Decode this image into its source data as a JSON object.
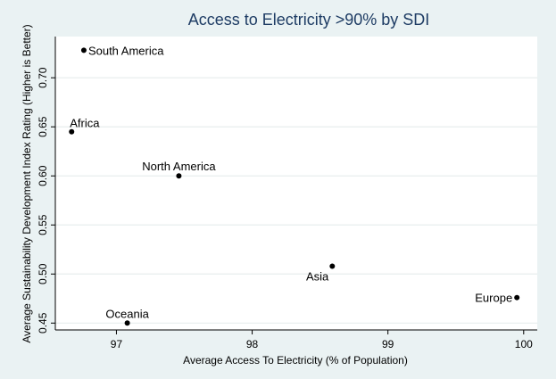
{
  "chart_data": {
    "type": "scatter",
    "title": "Access to Electricity >90% by SDI",
    "xlabel": "Average Access To Electricity (% of Population)",
    "ylabel": "Average Sustainability Development Index Rating (Higher is Better)",
    "xlim": [
      96.55,
      100.1
    ],
    "ylim": [
      0.443,
      0.742
    ],
    "x_ticks": [
      97,
      98,
      99,
      100
    ],
    "y_ticks": [
      0.45,
      0.5,
      0.55,
      0.6,
      0.65,
      0.7
    ],
    "x_tick_labels": [
      "97",
      "98",
      "99",
      "100"
    ],
    "y_tick_labels": [
      "0.45",
      "0.50",
      "0.55",
      "0.60",
      "0.65",
      "0.70"
    ],
    "grid": true,
    "legend": "none",
    "points": [
      {
        "label": "South America",
        "x": 96.76,
        "y": 0.728,
        "label_pos": "right"
      },
      {
        "label": "Africa",
        "x": 96.67,
        "y": 0.645,
        "label_pos": "above-right"
      },
      {
        "label": "North America",
        "x": 97.46,
        "y": 0.6,
        "label_pos": "above"
      },
      {
        "label": "Asia",
        "x": 98.59,
        "y": 0.508,
        "label_pos": "below-left"
      },
      {
        "label": "Europe",
        "x": 99.95,
        "y": 0.476,
        "label_pos": "left"
      },
      {
        "label": "Oceania",
        "x": 97.08,
        "y": 0.45,
        "label_pos": "above"
      }
    ]
  },
  "colors": {
    "background": "#eaf2f3",
    "plot_background": "#ffffff",
    "grid": "#e8eeee",
    "title": "#1e3c64",
    "marker": "#000000",
    "text": "#000000"
  }
}
